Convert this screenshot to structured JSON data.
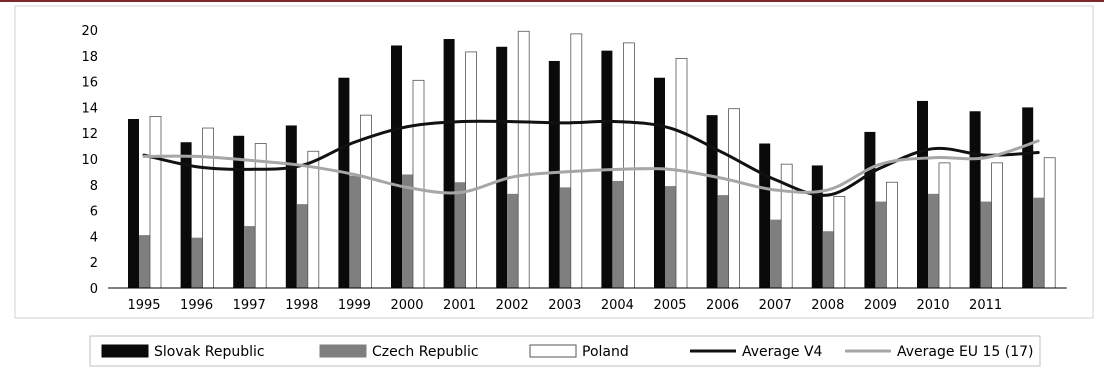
{
  "chart_data": {
    "type": "bar",
    "title": "",
    "xlabel": "",
    "ylabel": "",
    "ylim": [
      0,
      20
    ],
    "yticks": [
      "0",
      "2",
      "4",
      "6",
      "8",
      "10",
      "12",
      "14",
      "16",
      "18",
      "20"
    ],
    "categories": [
      "1995",
      "1996",
      "1997",
      "1998",
      "1999",
      "2000",
      "2001",
      "2002",
      "2003",
      "2004",
      "2005",
      "2006",
      "2007",
      "2008",
      "2009",
      "2010",
      "2011",
      ""
    ],
    "legend_position": "bottom",
    "grid": false,
    "series": [
      {
        "name": "Slovak Republic",
        "kind": "bar",
        "color": "#0a0a0a",
        "values": [
          13.1,
          11.3,
          11.8,
          12.6,
          16.3,
          18.8,
          19.3,
          18.7,
          17.6,
          18.4,
          16.3,
          13.4,
          11.2,
          9.5,
          12.1,
          14.5,
          13.7,
          14.0
        ]
      },
      {
        "name": "Czech Republic",
        "kind": "bar",
        "color": "#7f7f7f",
        "values": [
          4.1,
          3.9,
          4.8,
          6.5,
          8.7,
          8.8,
          8.2,
          7.3,
          7.8,
          8.3,
          7.9,
          7.2,
          5.3,
          4.4,
          6.7,
          7.3,
          6.7,
          7.0
        ]
      },
      {
        "name": "Poland",
        "kind": "bar",
        "color": "#ffffff",
        "values": [
          13.3,
          12.4,
          11.2,
          10.6,
          13.4,
          16.1,
          18.3,
          19.9,
          19.7,
          19.0,
          17.8,
          13.9,
          9.6,
          7.1,
          8.2,
          9.7,
          9.7,
          10.1
        ]
      },
      {
        "name": "Average V4",
        "kind": "line",
        "color": "#111111",
        "values": [
          10.3,
          9.4,
          9.2,
          9.5,
          11.3,
          12.5,
          12.9,
          12.9,
          12.8,
          12.9,
          12.4,
          10.5,
          8.4,
          7.2,
          9.3,
          10.8,
          10.3,
          10.5
        ]
      },
      {
        "name": "Average EU 15 (17)",
        "kind": "line",
        "color": "#a6a6a6",
        "values": [
          10.2,
          10.2,
          9.9,
          9.5,
          8.8,
          7.8,
          7.4,
          8.6,
          9.0,
          9.2,
          9.2,
          8.5,
          7.6,
          7.6,
          9.6,
          10.1,
          10.1,
          11.4
        ]
      }
    ]
  }
}
